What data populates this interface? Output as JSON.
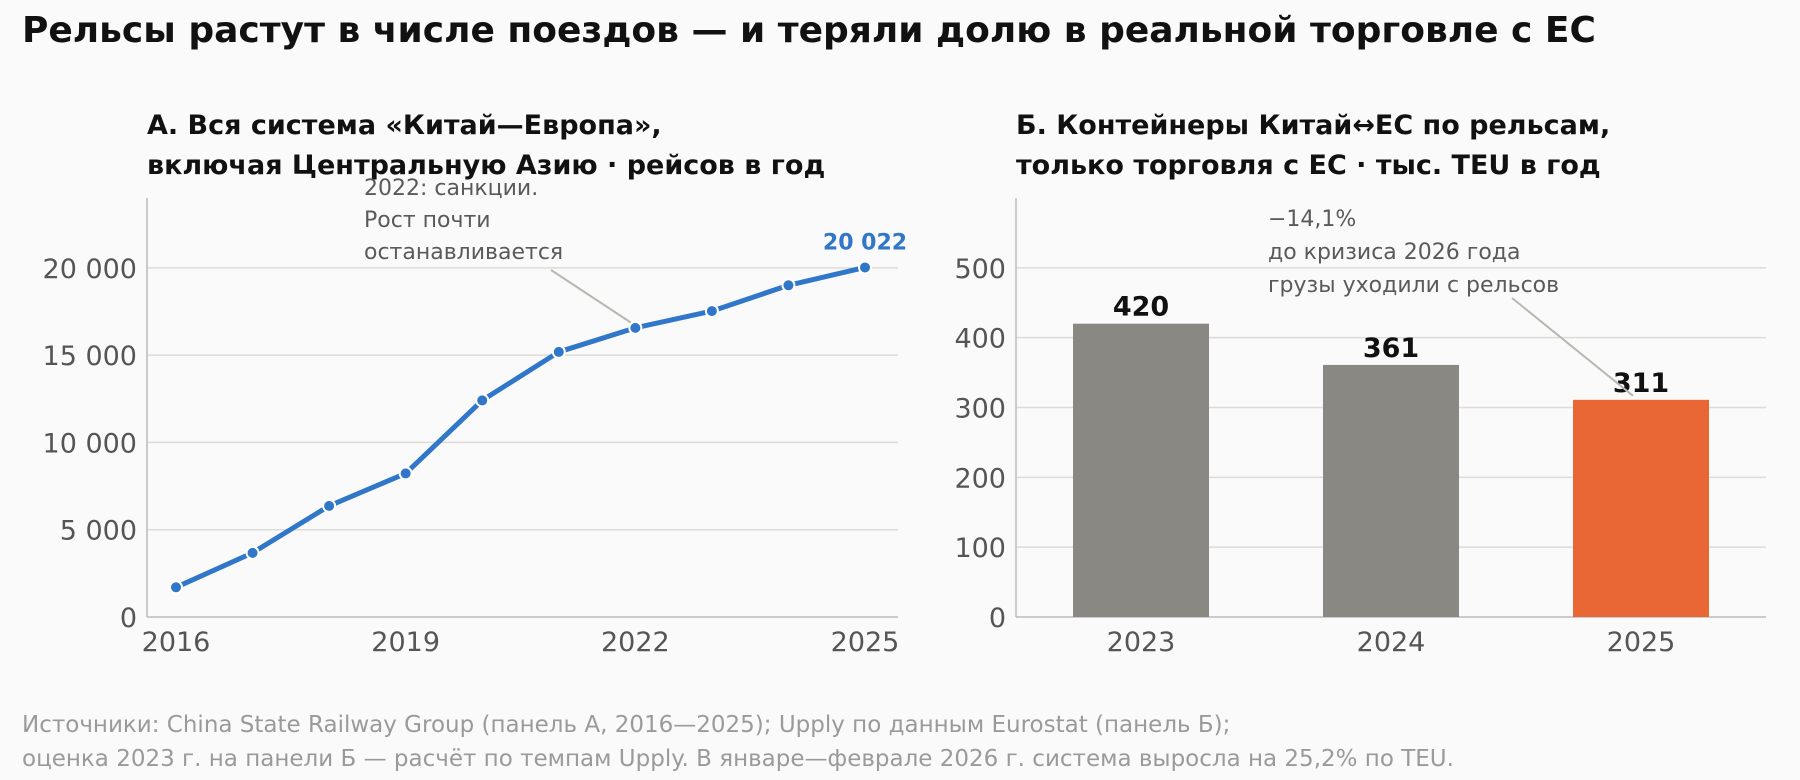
{
  "title": "Рельсы растут в числе поездов — и теряли долю в реальной торговле с ЕС",
  "colors": {
    "line": "#3077c9",
    "bar_gray": "#898882",
    "bar_highlight": "#e86734",
    "grid": "#dedcd6",
    "axis_text": "#555555",
    "annotation": "#5a5a5a"
  },
  "source": {
    "line1": "Источники: China State Railway Group (панель А, 2016—2025); Upply по данным Eurostat (панель Б);",
    "line2": "оценка 2023 г. на панели Б — расчёт по темпам Upply. В январе—феврале 2026 г. система выросла на 25,2% по TEU."
  },
  "chart_data": [
    {
      "type": "line",
      "title_line1": "А. Вся система «Китай—Европа»,",
      "title_line2": "включая Центральную Азию · рейсов в год",
      "x": [
        2016,
        2017,
        2018,
        2019,
        2020,
        2021,
        2022,
        2023,
        2024,
        2025
      ],
      "values": [
        1702,
        3673,
        6363,
        8225,
        12406,
        15183,
        16562,
        17523,
        19000,
        20022
      ],
      "x_ticks": [
        "2016",
        "2019",
        "2022",
        "2025"
      ],
      "y_ticks": [
        "0",
        "5 000",
        "10 000",
        "15 000",
        "20 000"
      ],
      "ylim": [
        0,
        24000
      ],
      "end_label": "20 022",
      "annotation": {
        "lines": [
          "2022: санкции.",
          "Рост почти",
          "останавливается"
        ],
        "target_x": 2022
      }
    },
    {
      "type": "bar",
      "title_line1": "Б. Контейнеры Китай↔ЕС по рельсам,",
      "title_line2": "только торговля с ЕС · тыс. TEU в год",
      "categories": [
        "2023",
        "2024",
        "2025"
      ],
      "values": [
        420,
        361,
        311
      ],
      "value_labels": [
        "420",
        "361",
        "311"
      ],
      "highlight_index": 2,
      "y_ticks": [
        "0",
        "100",
        "200",
        "300",
        "400",
        "500"
      ],
      "ylim": [
        0,
        600
      ],
      "annotation": {
        "lines": [
          "−14,1%",
          "до кризиса 2026 года",
          "грузы уходили с рельсов"
        ],
        "target_index": 2
      }
    }
  ]
}
